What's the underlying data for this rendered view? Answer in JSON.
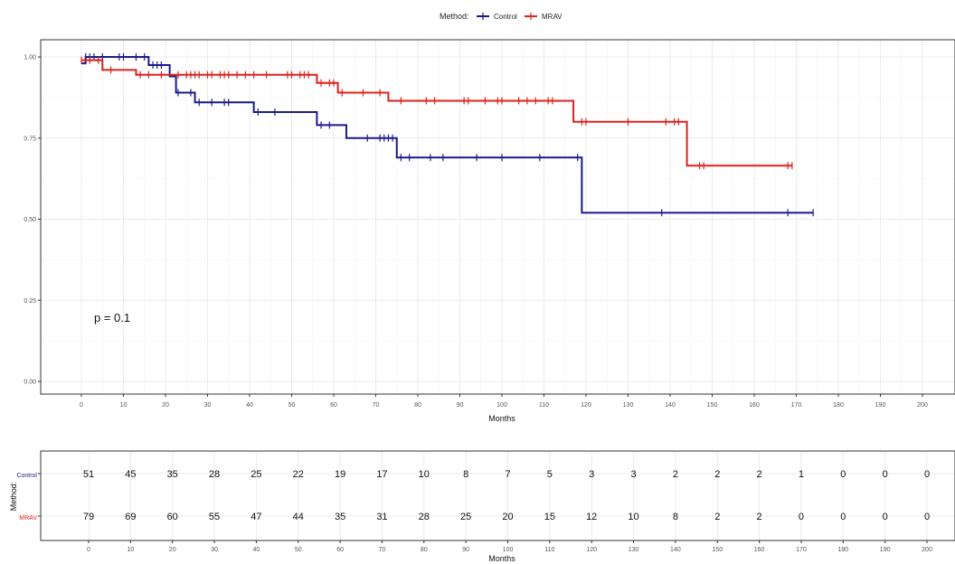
{
  "legend": {
    "title": "Method:",
    "entries": [
      {
        "label": "Control",
        "color": "#1a1a8a"
      },
      {
        "label": "MRAV",
        "color": "#e0201b"
      }
    ]
  },
  "colors": {
    "control": "#1a1a8a",
    "mrav": "#e0201b",
    "grid": "#ebebeb",
    "panel_border": "#333333"
  },
  "pvalue": "p = 0.1",
  "chart_data": [
    {
      "type": "line",
      "subtype": "kaplan-meier step",
      "xlabel": "Months",
      "ylabel": "",
      "xlim": [
        -10,
        207
      ],
      "ylim": [
        -0.02,
        1.05
      ],
      "x_ticks": [
        0,
        10,
        20,
        30,
        40,
        50,
        60,
        70,
        80,
        90,
        100,
        110,
        120,
        130,
        140,
        150,
        160,
        170,
        180,
        190,
        200
      ],
      "y_ticks": [
        0.0,
        0.25,
        0.5,
        0.75,
        1.0
      ],
      "y_tick_labels": [
        "0.00",
        "0.25",
        "0.50",
        "0.75",
        "1.00"
      ],
      "grid": true,
      "legend_position": "top",
      "series": [
        {
          "name": "Control",
          "steps": [
            [
              0,
              0.98
            ],
            [
              1,
              1.0
            ],
            [
              16,
              0.975
            ],
            [
              21,
              0.94
            ],
            [
              22.5,
              0.89
            ],
            [
              27,
              0.86
            ],
            [
              41,
              0.83
            ],
            [
              56,
              0.79
            ],
            [
              63,
              0.75
            ],
            [
              75,
              0.69
            ],
            [
              119,
              0.52
            ],
            [
              174,
              0.52
            ]
          ],
          "censor": [
            [
              1,
              1.0
            ],
            [
              2,
              1.0
            ],
            [
              3,
              1.0
            ],
            [
              5,
              1.0
            ],
            [
              9,
              1.0
            ],
            [
              10,
              1.0
            ],
            [
              13,
              1.0
            ],
            [
              15,
              1.0
            ],
            [
              17,
              0.975
            ],
            [
              18,
              0.975
            ],
            [
              19,
              0.975
            ],
            [
              23,
              0.89
            ],
            [
              26,
              0.89
            ],
            [
              28,
              0.86
            ],
            [
              31,
              0.86
            ],
            [
              34,
              0.86
            ],
            [
              35,
              0.86
            ],
            [
              42,
              0.83
            ],
            [
              46,
              0.83
            ],
            [
              57,
              0.79
            ],
            [
              59,
              0.79
            ],
            [
              68,
              0.75
            ],
            [
              71,
              0.75
            ],
            [
              72,
              0.75
            ],
            [
              73,
              0.75
            ],
            [
              74,
              0.75
            ],
            [
              76,
              0.69
            ],
            [
              78,
              0.69
            ],
            [
              83,
              0.69
            ],
            [
              86,
              0.69
            ],
            [
              94,
              0.69
            ],
            [
              100,
              0.69
            ],
            [
              109,
              0.69
            ],
            [
              118,
              0.69
            ],
            [
              138,
              0.52
            ],
            [
              168,
              0.52
            ],
            [
              174,
              0.52
            ]
          ]
        },
        {
          "name": "MRAV",
          "steps": [
            [
              0,
              0.99
            ],
            [
              5,
              0.96
            ],
            [
              13,
              0.945
            ],
            [
              56,
              0.92
            ],
            [
              61,
              0.89
            ],
            [
              73,
              0.865
            ],
            [
              117,
              0.8
            ],
            [
              144,
              0.665
            ],
            [
              169,
              0.665
            ]
          ],
          "censor": [
            [
              0,
              0.99
            ],
            [
              2,
              0.99
            ],
            [
              4,
              0.99
            ],
            [
              7,
              0.96
            ],
            [
              14,
              0.945
            ],
            [
              16,
              0.945
            ],
            [
              19,
              0.945
            ],
            [
              23,
              0.945
            ],
            [
              25,
              0.945
            ],
            [
              26,
              0.945
            ],
            [
              27,
              0.945
            ],
            [
              28,
              0.945
            ],
            [
              30,
              0.945
            ],
            [
              31,
              0.945
            ],
            [
              33,
              0.945
            ],
            [
              34,
              0.945
            ],
            [
              35,
              0.945
            ],
            [
              37,
              0.945
            ],
            [
              39,
              0.945
            ],
            [
              41,
              0.945
            ],
            [
              44,
              0.945
            ],
            [
              49,
              0.945
            ],
            [
              50,
              0.945
            ],
            [
              52,
              0.945
            ],
            [
              53,
              0.945
            ],
            [
              54,
              0.945
            ],
            [
              57,
              0.92
            ],
            [
              59,
              0.92
            ],
            [
              60,
              0.92
            ],
            [
              62,
              0.89
            ],
            [
              67,
              0.89
            ],
            [
              71,
              0.89
            ],
            [
              76,
              0.865
            ],
            [
              82,
              0.865
            ],
            [
              84,
              0.865
            ],
            [
              91,
              0.865
            ],
            [
              92,
              0.865
            ],
            [
              96,
              0.865
            ],
            [
              99,
              0.865
            ],
            [
              100,
              0.865
            ],
            [
              104,
              0.865
            ],
            [
              106,
              0.865
            ],
            [
              108,
              0.865
            ],
            [
              111,
              0.865
            ],
            [
              112,
              0.865
            ],
            [
              119,
              0.8
            ],
            [
              120,
              0.8
            ],
            [
              130,
              0.8
            ],
            [
              139,
              0.8
            ],
            [
              141,
              0.8
            ],
            [
              142,
              0.8
            ],
            [
              147,
              0.665
            ],
            [
              148,
              0.665
            ],
            [
              168,
              0.665
            ],
            [
              169,
              0.665
            ]
          ]
        }
      ]
    },
    {
      "type": "table",
      "title": "",
      "ylabel": "Method:",
      "xlabel": "Months",
      "x": [
        0,
        10,
        20,
        30,
        40,
        50,
        60,
        70,
        80,
        90,
        100,
        110,
        120,
        130,
        140,
        150,
        160,
        170,
        180,
        190,
        200
      ],
      "rows": [
        {
          "name": "Control",
          "values": [
            51,
            45,
            35,
            28,
            25,
            22,
            19,
            17,
            10,
            8,
            7,
            5,
            3,
            3,
            2,
            2,
            2,
            1,
            0,
            0,
            0
          ]
        },
        {
          "name": "MRAV",
          "values": [
            79,
            69,
            60,
            55,
            47,
            44,
            35,
            31,
            28,
            25,
            20,
            15,
            12,
            10,
            8,
            2,
            2,
            0,
            0,
            0,
            0
          ]
        }
      ]
    }
  ]
}
